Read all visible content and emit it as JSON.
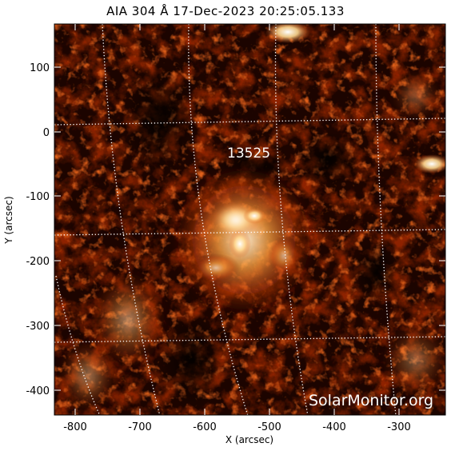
{
  "header": {
    "title": "AIA 304 Å 17-Dec-2023 20:25:05.133"
  },
  "axes": {
    "xlabel": "X (arcsec)",
    "ylabel": "Y (arcsec)",
    "xticks": [
      "-800",
      "-700",
      "-600",
      "-500",
      "-400",
      "-300"
    ],
    "yticks": [
      "100",
      "0",
      "-100",
      "-200",
      "-300",
      "-400"
    ],
    "xrange": [
      -830,
      -235
    ],
    "yrange": [
      -440,
      165
    ]
  },
  "image": {
    "colormap": "sdoaia304",
    "colors": {
      "background": "#000000",
      "dark": "#3a0a02",
      "mid": "#9a2a08",
      "bright": "#e8681a",
      "hot": "#fff4d8",
      "grid": "#ffffff"
    },
    "active_region": "13525",
    "watermark": "SolarMonitor.org"
  }
}
